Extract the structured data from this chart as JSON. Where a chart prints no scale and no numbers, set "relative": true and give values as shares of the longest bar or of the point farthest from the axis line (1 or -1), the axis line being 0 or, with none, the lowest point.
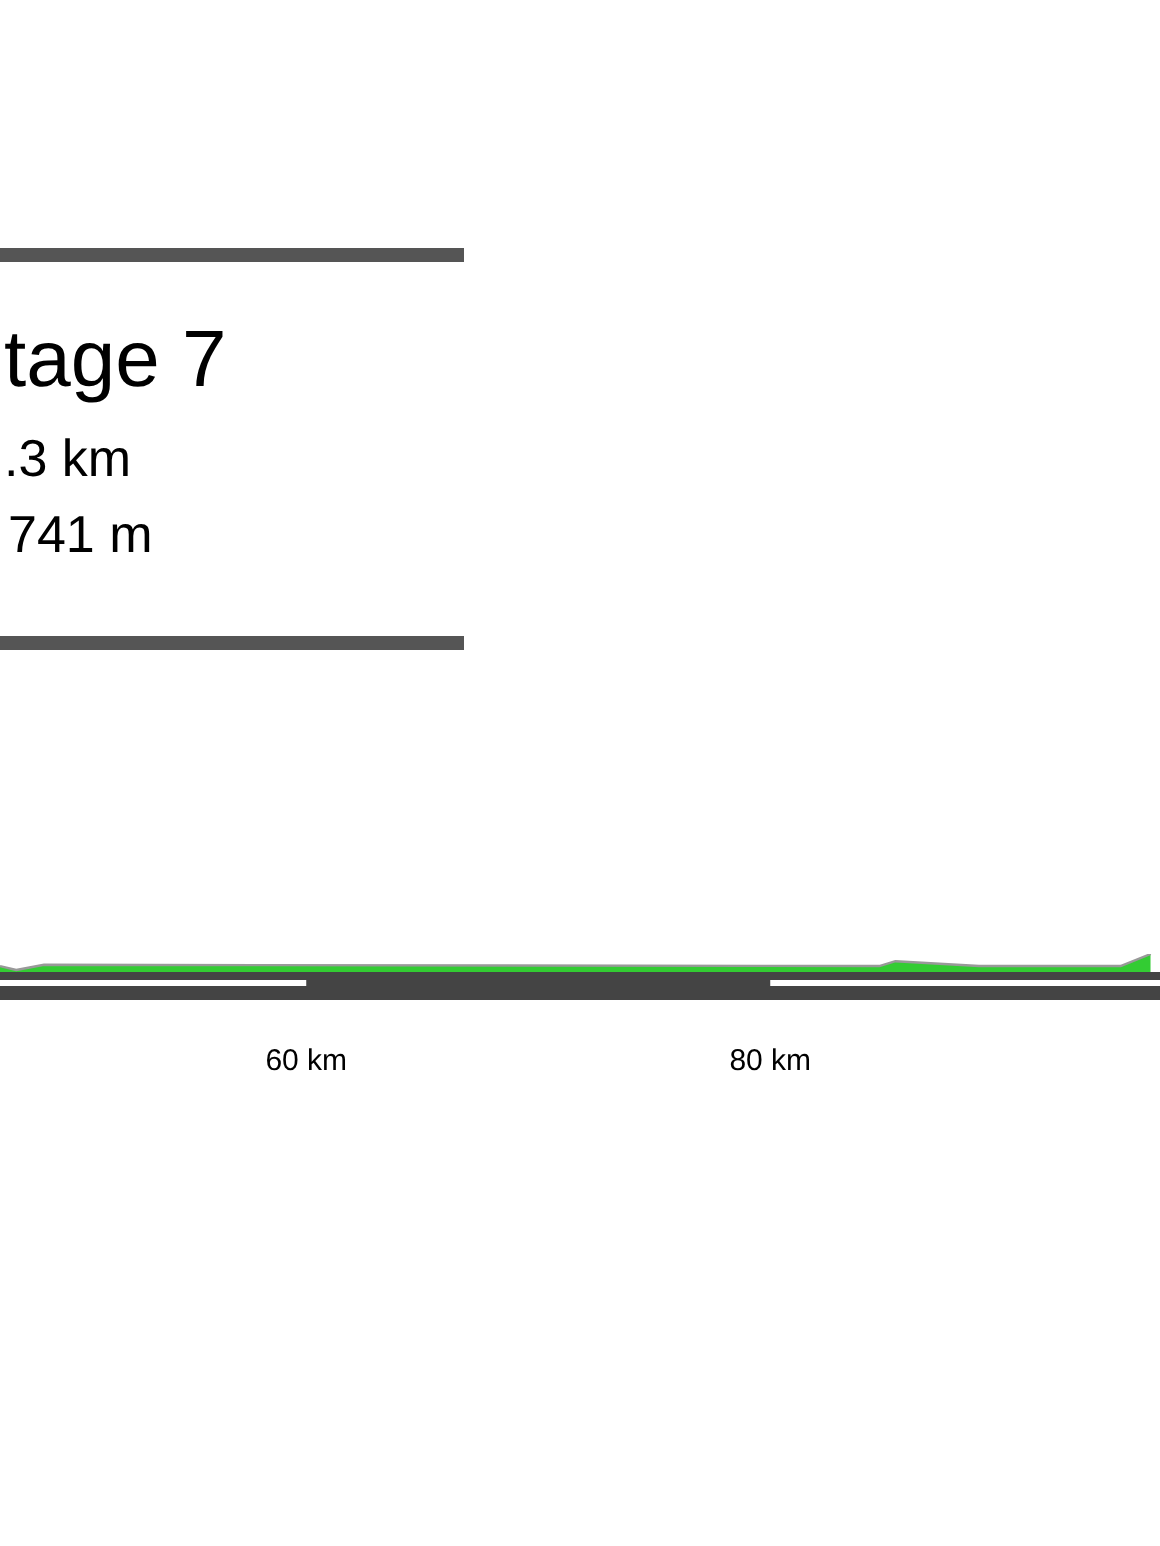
{
  "chart_data": {
    "type": "area",
    "title": "tage 7",
    "subtitle": ".3 km",
    "annotations": [
      "741 m"
    ],
    "relative": true,
    "x": [
      46.8,
      47.5,
      48.7,
      84.7,
      85.4,
      89.0,
      95.1,
      96.4
    ],
    "series": [
      {
        "color": "#33cc33",
        "values": [
          0.33,
          0.11,
          0.4,
          0.33,
          0.6,
          0.33,
          0.33,
          1
        ]
      }
    ],
    "xlim": [
      46.8,
      96.8
    ],
    "xticks": [
      {
        "value": 60,
        "label": "60 km"
      },
      {
        "value": 80,
        "label": "80 km"
      }
    ],
    "legend": false,
    "grid": false
  }
}
